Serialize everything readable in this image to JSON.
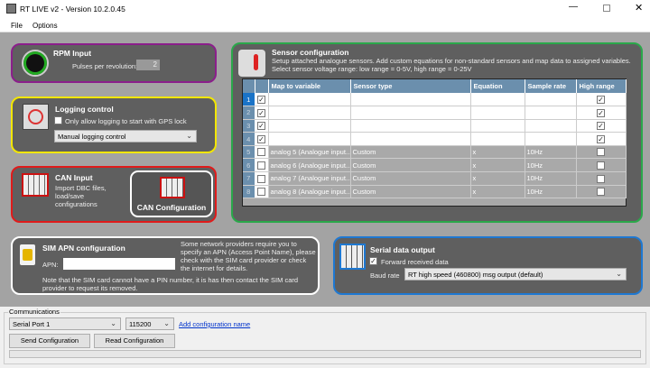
{
  "window": {
    "title": "RT LIVE v2 - Version 10.2.0.45",
    "icons": [
      "app-icon",
      "minimize-icon",
      "maximize-icon",
      "close-icon"
    ]
  },
  "menu": {
    "file": "File",
    "options": "Options"
  },
  "rpm": {
    "title": "RPM Input",
    "pulses_label": "Pulses per revolution:",
    "pulses_value": "2",
    "border": "#8b1e8b"
  },
  "logging": {
    "title": "Logging control",
    "gps_lock_label": "Only allow logging to start with GPS lock",
    "gps_lock_checked": false,
    "mode": "Manual logging control",
    "border": "#f2e600"
  },
  "can": {
    "title": "CAN Input",
    "desc": "Import DBC files, load/save configurations",
    "button": "CAN Configuration",
    "border": "#e01b1b"
  },
  "sensor": {
    "title": "Sensor configuration",
    "desc1": "Setup attached analogue sensors. Add custom equations for non-standard sensors and map data to assigned variables.",
    "desc2": "Select sensor voltage range: low range = 0-5V, high range = 0-25V",
    "border": "#2aa84a",
    "columns": [
      "Map to variable",
      "Sensor type",
      "Equation",
      "Sample rate",
      "High range"
    ],
    "rows": [
      {
        "n": "1",
        "enabled": true,
        "map": "analog 1 (Analogue input...",
        "type": "Custom",
        "eq": "x",
        "rate": "10Hz",
        "high": true
      },
      {
        "n": "2",
        "enabled": true,
        "map": "analog 2 (Analogue input...",
        "type": "Custom",
        "eq": "x",
        "rate": "10Hz",
        "high": true
      },
      {
        "n": "3",
        "enabled": true,
        "map": "analog 3 (Analogue input...",
        "type": "Custom",
        "eq": "x",
        "rate": "10Hz",
        "high": true
      },
      {
        "n": "4",
        "enabled": true,
        "map": "analog 4 (Analogue input...",
        "type": "Custom",
        "eq": "x",
        "rate": "10Hz",
        "high": true
      },
      {
        "n": "5",
        "enabled": false,
        "map": "analog 5 (Analogue input...",
        "type": "Custom",
        "eq": "x",
        "rate": "10Hz",
        "high": false
      },
      {
        "n": "6",
        "enabled": false,
        "map": "analog 6 (Analogue input...",
        "type": "Custom",
        "eq": "x",
        "rate": "10Hz",
        "high": false
      },
      {
        "n": "7",
        "enabled": false,
        "map": "analog 7 (Analogue input...",
        "type": "Custom",
        "eq": "x",
        "rate": "10Hz",
        "high": false
      },
      {
        "n": "8",
        "enabled": false,
        "map": "analog 8 (Analogue input...",
        "type": "Custom",
        "eq": "x",
        "rate": "10Hz",
        "high": false
      }
    ]
  },
  "sim": {
    "title": "SIM APN configuration",
    "apn_label": "APN:",
    "apn_value": "",
    "info": "Some network providers require you to specify an APN (Access Point Name), please check with the SIM card provider or check the internet for details.",
    "note": "Note that the SIM card cannot have a PIN number, it is has then contact the SIM card provider to request its removed.",
    "border": "#ffffff"
  },
  "serial": {
    "title": "Serial data output",
    "forward_label": "Forward received data",
    "forward_checked": true,
    "baud_label": "Baud rate",
    "baud_value": "RT high speed (460800) msg output (default)",
    "border": "#1e78d2"
  },
  "comms": {
    "group": "Communications",
    "port": "Serial Port 1",
    "baud": "115200",
    "add_name_link": "Add configuration name",
    "send": "Send Configuration",
    "read": "Read Configuration",
    "progress": 0
  }
}
